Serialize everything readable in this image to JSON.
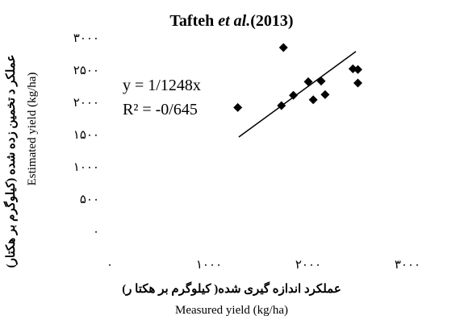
{
  "chart_data": {
    "type": "scatter",
    "title": {
      "prefix": "Tafteh ",
      "italic": "et al.",
      "suffix": "(2013)"
    },
    "xlabel_fa": "عملکرد اندازه گیری شده( کیلوگرم بر هکتا ر)",
    "xlabel_en": "Measured yield (kg/ha)",
    "ylabel_fa": "عملکر د تخمین زده شده (کیلوگرم بر هکتار)",
    "ylabel_en": "Estimated yield (kg/ha)",
    "xlim": [
      0,
      3000
    ],
    "ylim": [
      0,
      3000
    ],
    "x_ticks": [
      {
        "value": 0,
        "label": "۰"
      },
      {
        "value": 1000,
        "label": "۱۰۰۰"
      },
      {
        "value": 2000,
        "label": "۲۰۰۰"
      },
      {
        "value": 3000,
        "label": "۳۰۰۰"
      }
    ],
    "y_ticks": [
      {
        "value": 0,
        "label": "۰"
      },
      {
        "value": 500,
        "label": "۵۰۰"
      },
      {
        "value": 1000,
        "label": "۱۰۰۰"
      },
      {
        "value": 1500,
        "label": "۱۵۰۰"
      },
      {
        "value": 2000,
        "label": "۲۰۰۰"
      },
      {
        "value": 2500,
        "label": "۲۵۰۰"
      },
      {
        "value": 3000,
        "label": "۳۰۰۰"
      }
    ],
    "grid": false,
    "legend": "none",
    "points": [
      {
        "x": 1290,
        "y": 1920
      },
      {
        "x": 1730,
        "y": 1950
      },
      {
        "x": 1750,
        "y": 2850
      },
      {
        "x": 1850,
        "y": 2110
      },
      {
        "x": 2000,
        "y": 2320
      },
      {
        "x": 2050,
        "y": 2040
      },
      {
        "x": 2130,
        "y": 2330
      },
      {
        "x": 2170,
        "y": 2120
      },
      {
        "x": 2450,
        "y": 2520
      },
      {
        "x": 2500,
        "y": 2510
      },
      {
        "x": 2500,
        "y": 2300
      }
    ],
    "trendline": {
      "equation": "y = 1/1248x",
      "r_squared": "R² = -0/645",
      "x_range": [
        1300,
        2480
      ]
    },
    "marker_color": "#000000",
    "line_color": "#000000"
  }
}
